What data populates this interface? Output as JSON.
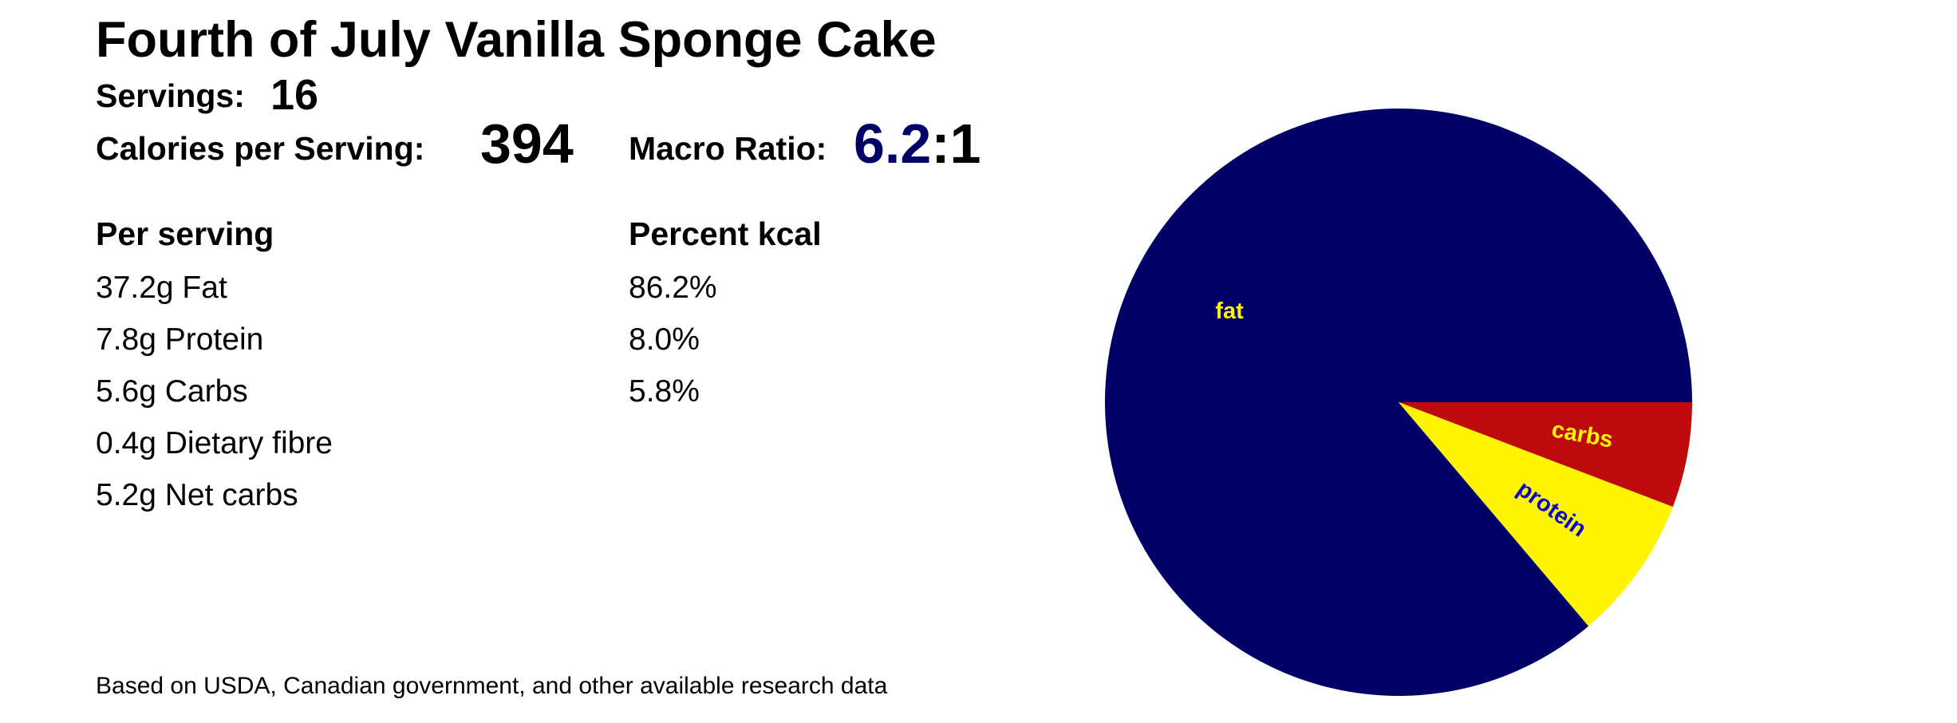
{
  "title": "Fourth of July Vanilla Sponge Cake",
  "servings": {
    "label": "Servings:",
    "value": "16"
  },
  "calories": {
    "label": "Calories per Serving:",
    "value": "394"
  },
  "macro_ratio": {
    "label": "Macro Ratio:",
    "value_num": "6.2",
    "value_rest": ":1"
  },
  "per_serving": {
    "header": "Per serving",
    "rows": [
      "37.2g Fat",
      "7.8g Protein",
      "5.6g Carbs",
      "0.4g Dietary fibre",
      "5.2g Net carbs"
    ]
  },
  "percent_kcal": {
    "header": "Percent kcal",
    "rows": [
      "86.2%",
      "8.0%",
      "5.8%"
    ]
  },
  "footer": "Based on USDA, Canadian government, and other available research data",
  "colors": {
    "fat": "#000066",
    "protein": "#FFF500",
    "carbs": "#BE0A0A"
  },
  "chart_data": {
    "type": "pie",
    "slices": [
      {
        "label": "fat",
        "value": 86.2,
        "color": "#000066",
        "label_color": "#FFF500"
      },
      {
        "label": "protein",
        "value": 8.0,
        "color": "#FFF500",
        "label_color": "#0A0AC8"
      },
      {
        "label": "carbs",
        "value": 5.8,
        "color": "#BE0A0A",
        "label_color": "#FFF500"
      }
    ],
    "start": "3 o'clock",
    "direction": "clockwise, fat slice counter-clockwise from 3 o'clock"
  }
}
